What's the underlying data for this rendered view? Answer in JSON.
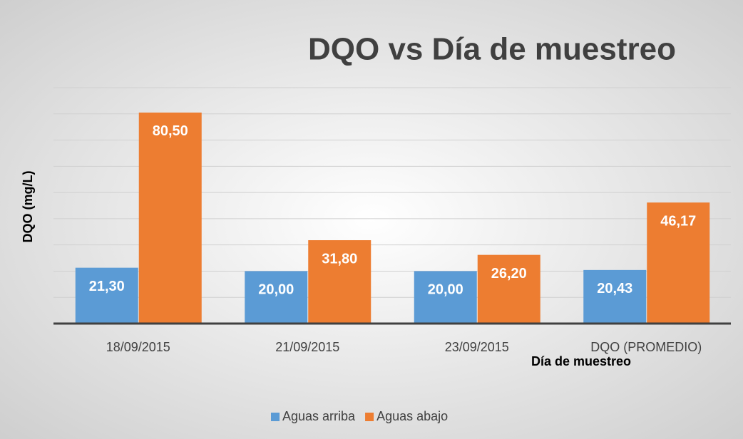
{
  "chart_data": {
    "type": "bar",
    "title": "DQO vs Día de muestreo",
    "x_label": "Día de muestreo",
    "y_label": "DQO (mg/L)",
    "categories": [
      "18/09/2015",
      "21/09/2015",
      "23/09/2015",
      "DQO (PROMEDIO)"
    ],
    "series": [
      {
        "name": "Aguas arriba",
        "color": "#5b9bd5",
        "values": [
          21.3,
          20.0,
          20.0,
          20.43
        ],
        "value_labels": [
          "21,30",
          "20,00",
          "20,00",
          "20,43"
        ]
      },
      {
        "name": "Aguas abajo",
        "color": "#ed7d31",
        "values": [
          80.5,
          31.8,
          26.2,
          46.17
        ],
        "value_labels": [
          "80,50",
          "31,80",
          "26,20",
          "46,17"
        ]
      }
    ],
    "ylim": [
      0,
      90
    ],
    "yticks": [
      0,
      10,
      20,
      30,
      40,
      50,
      60,
      70,
      80,
      90
    ],
    "grid": true,
    "legend": "bottom"
  }
}
